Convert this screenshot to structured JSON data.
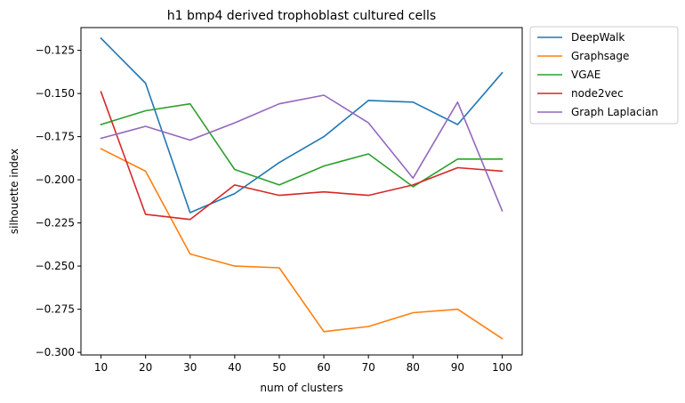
{
  "chart_data": {
    "type": "line",
    "title": "h1 bmp4 derived trophoblast cultured cells",
    "xlabel": "num of clusters",
    "ylabel": "silhouette index",
    "x": [
      10,
      20,
      30,
      40,
      50,
      60,
      70,
      80,
      90,
      100
    ],
    "x_ticks": [
      "10",
      "20",
      "30",
      "40",
      "50",
      "60",
      "70",
      "80",
      "90",
      "100"
    ],
    "y_ticks": [
      "−0.125",
      "−0.150",
      "−0.175",
      "−0.200",
      "−0.225",
      "−0.250",
      "−0.275",
      "−0.300"
    ],
    "y_tick_values": [
      -0.125,
      -0.15,
      -0.175,
      -0.2,
      -0.225,
      -0.25,
      -0.275,
      -0.3
    ],
    "xlim": [
      5.5,
      104.5
    ],
    "ylim": [
      -0.3015,
      -0.1118
    ],
    "grid": false,
    "legend_position": "outside-upper-right",
    "series": [
      {
        "name": "DeepWalk",
        "color": "#1f77b4",
        "values": [
          -0.118,
          -0.144,
          -0.219,
          -0.208,
          -0.19,
          -0.175,
          -0.154,
          -0.155,
          -0.168,
          -0.138
        ]
      },
      {
        "name": "Graphsage",
        "color": "#ff7f0e",
        "values": [
          -0.182,
          -0.195,
          -0.243,
          -0.25,
          -0.251,
          -0.288,
          -0.285,
          -0.277,
          -0.275,
          -0.292
        ]
      },
      {
        "name": "VGAE",
        "color": "#2ca02c",
        "values": [
          -0.168,
          -0.16,
          -0.156,
          -0.194,
          -0.203,
          -0.192,
          -0.185,
          -0.204,
          -0.188,
          -0.188
        ]
      },
      {
        "name": "node2vec",
        "color": "#d62728",
        "values": [
          -0.149,
          -0.22,
          -0.223,
          -0.203,
          -0.209,
          -0.207,
          -0.209,
          -0.203,
          -0.193,
          -0.195
        ]
      },
      {
        "name": "Graph Laplacian",
        "color": "#9467bd",
        "values": [
          -0.176,
          -0.169,
          -0.177,
          -0.167,
          -0.156,
          -0.151,
          -0.167,
          -0.199,
          -0.155,
          -0.218
        ]
      }
    ]
  }
}
